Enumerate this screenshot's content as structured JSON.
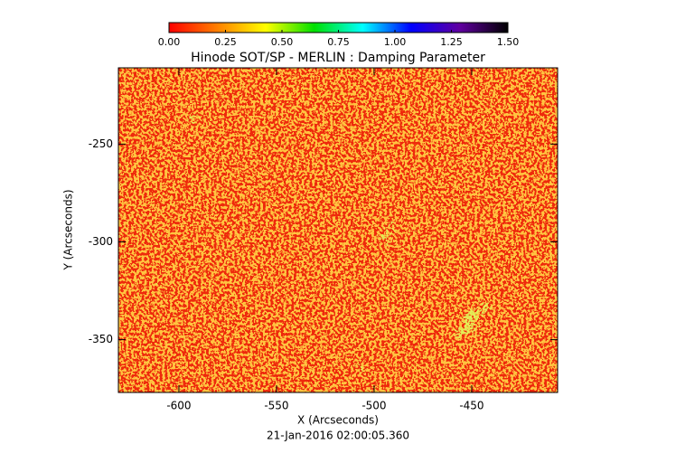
{
  "chart_data": {
    "type": "heatmap",
    "title": "Hinode SOT/SP - MERLIN : Damping Parameter",
    "xlabel": "X (Arcseconds)",
    "ylabel": "Y (Arcseconds)",
    "footer": "21-Jan-2016 02:00:05.360",
    "xlim": [
      -631,
      -406
    ],
    "ylim": [
      -377,
      -211
    ],
    "xticks": [
      -600,
      -550,
      -500,
      -450
    ],
    "yticks": [
      -250,
      -300,
      -350
    ],
    "colorbar": {
      "clim": [
        0,
        1.5
      ],
      "colormap": [
        "#ff0000",
        "#ff8000",
        "#ffff00",
        "#00e000",
        "#00ffff",
        "#0000ff",
        "#6000a0",
        "#000000"
      ],
      "ticks": [
        {
          "value": 0,
          "label": "0.00"
        },
        {
          "value": 0.25,
          "label": "0.25"
        },
        {
          "value": 0.5,
          "label": "0.50"
        },
        {
          "value": 0.75,
          "label": "0.75"
        },
        {
          "value": 1,
          "label": "1.00"
        },
        {
          "value": 1.25,
          "label": "1.25"
        },
        {
          "value": 1.5,
          "label": "1.50"
        }
      ]
    }
  }
}
